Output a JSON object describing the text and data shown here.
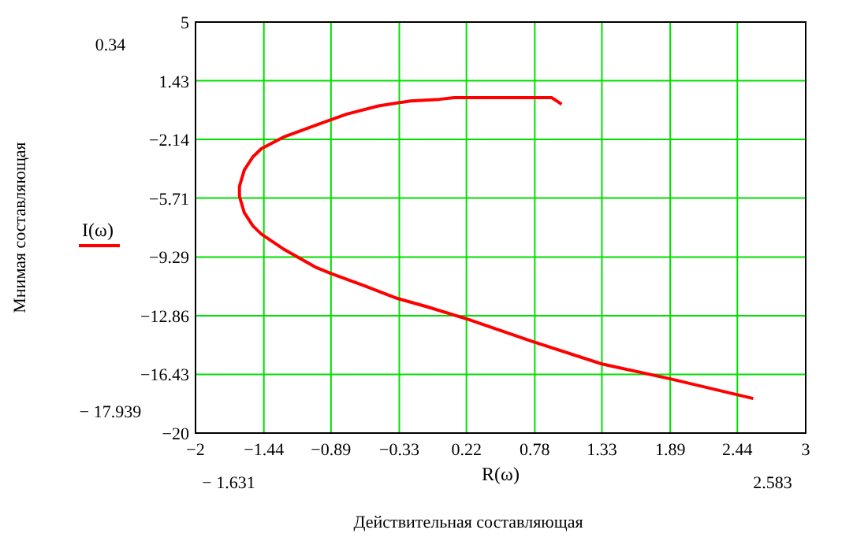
{
  "chart_data": {
    "type": "line",
    "xlabel": "R(ω)",
    "annotations": [
      "0.34",
      "− 17.939",
      "− 1.631",
      "2.583",
      "Действительная составляющая",
      "Мнимая составляющая"
    ],
    "xlim": [
      -2,
      3
    ],
    "xticks": [
      -2,
      -1.44,
      -0.89,
      -0.33,
      0.22,
      0.78,
      1.33,
      1.89,
      2.44,
      3
    ],
    "ylim": [
      -20,
      5
    ],
    "yticks": [
      5,
      1.43,
      -2.14,
      -5.71,
      -9.29,
      -12.86,
      -16.43,
      -20
    ],
    "grid": true,
    "legend": "left",
    "marker": "none",
    "line_style": "solid",
    "series": [
      {
        "name": "I(ω)",
        "color": "#ff0000",
        "x": [
          1.0,
          0.92,
          0.12,
          0.0,
          -0.24,
          -0.5,
          -0.76,
          -0.95,
          -1.28,
          -1.46,
          -1.53,
          -1.6,
          -1.64,
          -1.64,
          -1.6,
          -1.53,
          -1.46,
          -1.28,
          -1.02,
          -0.89,
          -0.63,
          -0.35,
          -0.11,
          0.24,
          0.75,
          1.33,
          1.89,
          2.57
        ],
        "values": [
          0.0,
          0.4,
          0.4,
          0.3,
          0.2,
          -0.1,
          -0.6,
          -1.1,
          -2.0,
          -2.7,
          -3.2,
          -4.0,
          -5.0,
          -5.6,
          -6.6,
          -7.4,
          -7.9,
          -8.8,
          -9.9,
          -10.3,
          -11.0,
          -11.8,
          -12.3,
          -13.1,
          -14.4,
          -15.8,
          -16.7,
          -17.9
        ]
      }
    ]
  }
}
